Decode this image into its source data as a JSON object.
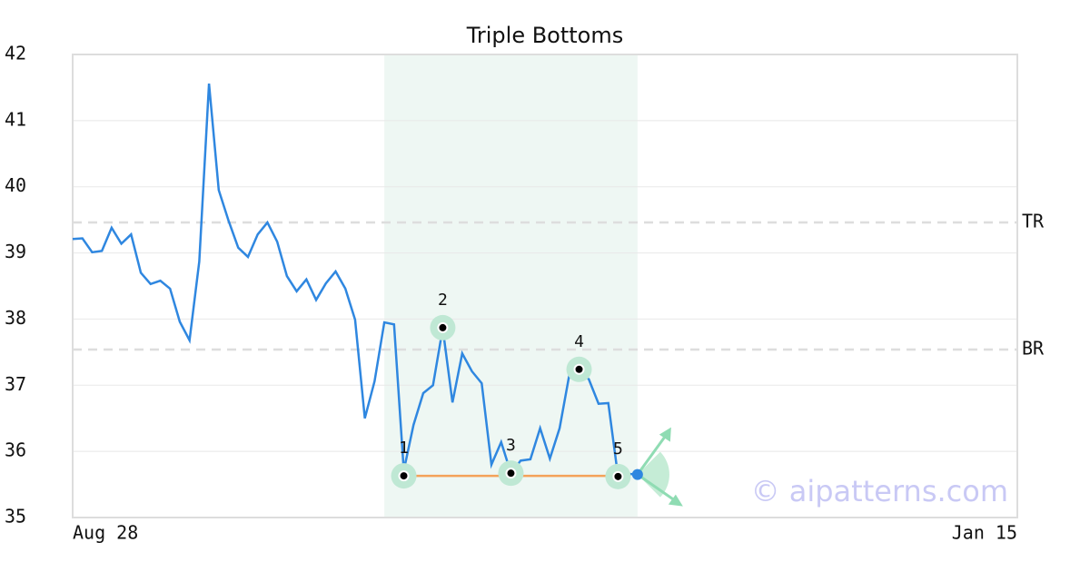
{
  "chart_data": {
    "type": "line",
    "title": "Triple Bottoms",
    "xlim": [
      0,
      97
    ],
    "xticks": [
      {
        "value": 0,
        "label": "Aug 28"
      },
      {
        "value": 97,
        "label": "Jan 15"
      }
    ],
    "ylim": [
      35,
      42
    ],
    "yticks": [
      35,
      36,
      37,
      38,
      39,
      40,
      41,
      42
    ],
    "grid": true,
    "series": [
      {
        "color": "#2f87e0",
        "x": [
          0,
          1,
          2,
          3,
          4,
          5,
          6,
          7,
          8,
          9,
          10,
          11,
          12,
          13,
          14,
          15,
          16,
          17,
          18,
          19,
          20,
          21,
          22,
          23,
          24,
          25,
          26,
          27,
          28,
          29,
          30,
          31,
          32,
          33,
          34,
          35,
          36,
          37,
          38,
          39,
          40,
          41,
          42,
          43,
          44,
          45,
          46,
          47,
          48,
          49,
          50,
          51,
          52,
          53,
          54,
          55,
          56,
          57,
          58
        ],
        "values": [
          39.21,
          39.22,
          39.01,
          39.03,
          39.38,
          39.14,
          39.28,
          38.7,
          38.53,
          38.58,
          38.46,
          37.96,
          37.68,
          38.87,
          41.56,
          39.95,
          39.49,
          39.08,
          38.94,
          39.28,
          39.46,
          39.17,
          38.65,
          38.42,
          38.6,
          38.29,
          38.54,
          38.72,
          38.46,
          37.99,
          36.5,
          37.06,
          37.95,
          37.92,
          35.71,
          36.4,
          36.88,
          37.0,
          37.86,
          36.74,
          37.48,
          37.21,
          37.03,
          35.8,
          36.14,
          35.67,
          35.86,
          35.88,
          36.35,
          35.89,
          36.35,
          37.16,
          37.24,
          37.09,
          36.72,
          36.73,
          35.62,
          35.66,
          35.65
        ]
      }
    ],
    "pattern_region": [
      32,
      58
    ],
    "pattern_points": [
      {
        "label": "1",
        "x": 34,
        "y": 35.63
      },
      {
        "label": "2",
        "x": 38,
        "y": 37.87
      },
      {
        "label": "3",
        "x": 45,
        "y": 35.67
      },
      {
        "label": "4",
        "x": 52,
        "y": 37.24
      },
      {
        "label": "5",
        "x": 56,
        "y": 35.62
      }
    ],
    "levels": [
      {
        "label": "TR",
        "value": 39.46
      },
      {
        "label": "BR",
        "value": 37.54
      }
    ],
    "watermark": "© aipatterns.com"
  }
}
